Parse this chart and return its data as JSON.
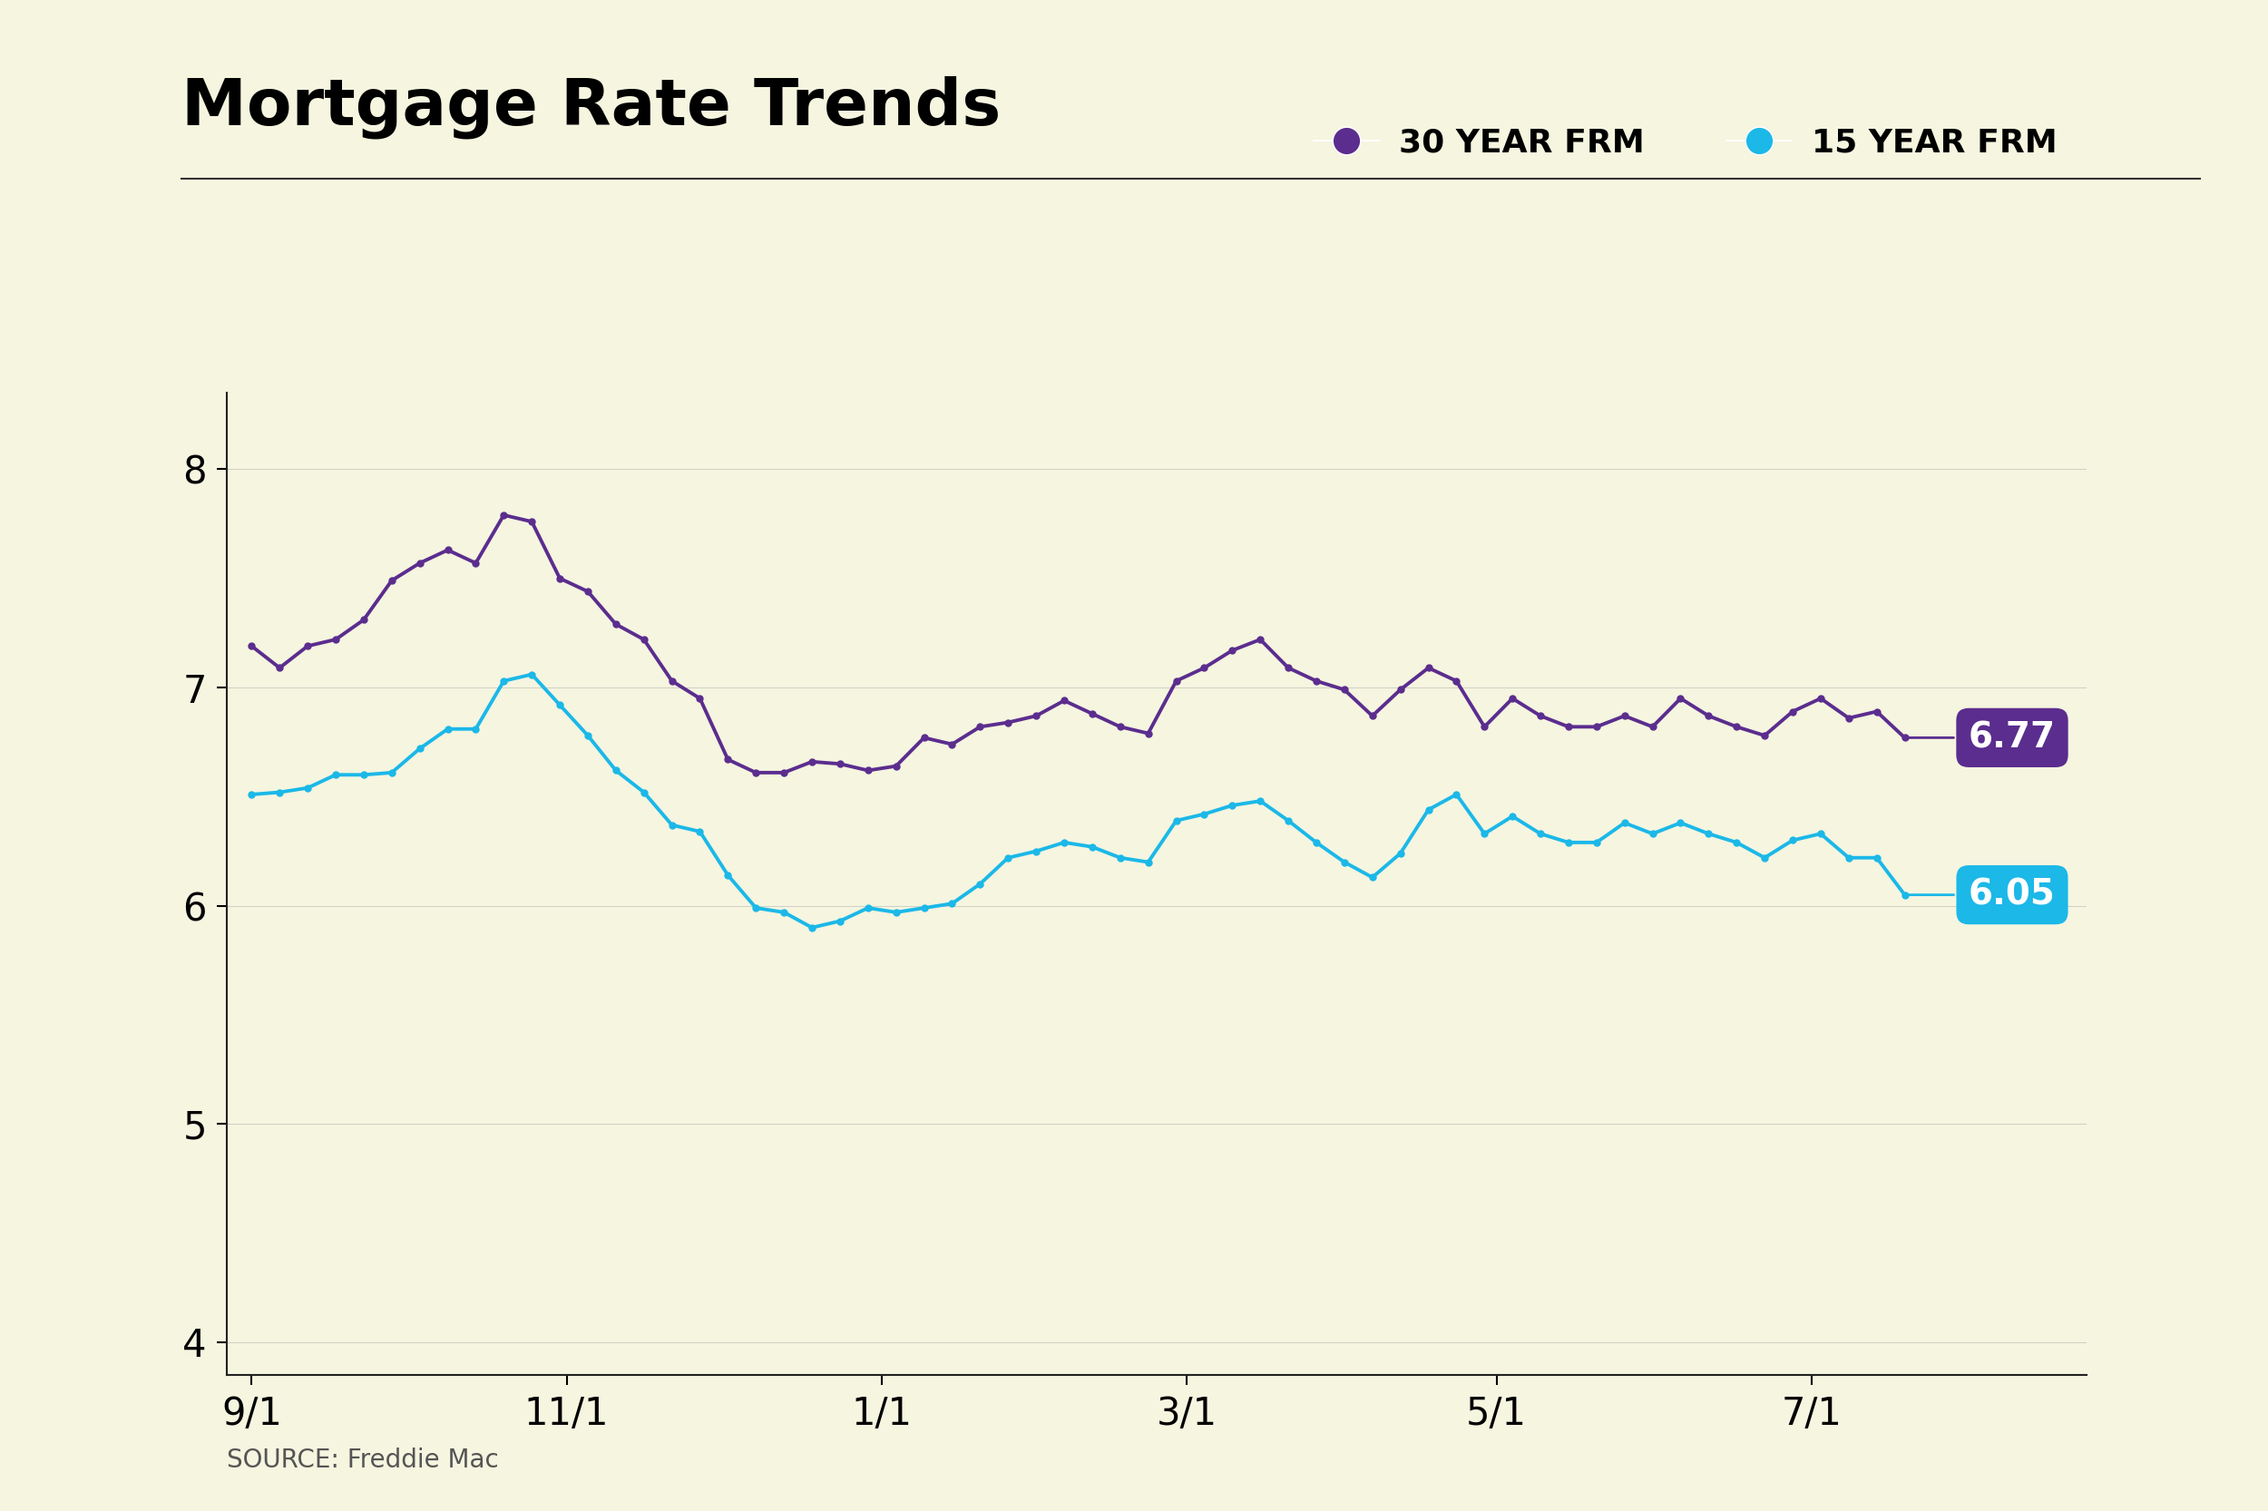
{
  "title": "Mortgage Rate Trends",
  "source": "SOURCE: Freddie Mac",
  "background_color": "#f5f5e0",
  "title_color": "#000000",
  "yticks": [
    4,
    5,
    6,
    7,
    8
  ],
  "ylim": [
    3.85,
    8.35
  ],
  "xtick_labels": [
    "9/1",
    "11/1",
    "1/1",
    "3/1",
    "5/1",
    "7/1"
  ],
  "xtick_positions": [
    0.0,
    0.1906,
    0.3813,
    0.5656,
    0.7531,
    0.9438
  ],
  "legend_30yr_label": "30 YEAR FRM",
  "legend_15yr_label": "15 YEAR FRM",
  "color_30yr": "#5B2D8E",
  "color_15yr": "#1BB8E8",
  "end_label_30yr": "6.77",
  "end_label_15yr": "6.05",
  "series_30yr": [
    7.19,
    7.09,
    7.19,
    7.22,
    7.31,
    7.49,
    7.57,
    7.63,
    7.57,
    7.79,
    7.76,
    7.5,
    7.44,
    7.29,
    7.22,
    7.03,
    6.95,
    6.67,
    6.61,
    6.61,
    6.66,
    6.65,
    6.62,
    6.64,
    6.77,
    6.74,
    6.82,
    6.84,
    6.87,
    6.94,
    6.88,
    6.82,
    6.79,
    7.03,
    7.09,
    7.17,
    7.22,
    7.09,
    7.03,
    6.99,
    6.87,
    6.99,
    7.09,
    7.03,
    6.82,
    6.95,
    6.87,
    6.82,
    6.82,
    6.87,
    6.82,
    6.95,
    6.87,
    6.82,
    6.78,
    6.89,
    6.95,
    6.86,
    6.89,
    6.77
  ],
  "series_15yr": [
    6.51,
    6.52,
    6.54,
    6.6,
    6.6,
    6.61,
    6.72,
    6.81,
    6.81,
    7.03,
    7.06,
    6.92,
    6.78,
    6.62,
    6.52,
    6.37,
    6.34,
    6.14,
    5.99,
    5.97,
    5.9,
    5.93,
    5.99,
    5.97,
    5.99,
    6.01,
    6.1,
    6.22,
    6.25,
    6.29,
    6.27,
    6.22,
    6.2,
    6.39,
    6.42,
    6.46,
    6.48,
    6.39,
    6.29,
    6.2,
    6.13,
    6.24,
    6.44,
    6.51,
    6.33,
    6.41,
    6.33,
    6.29,
    6.29,
    6.38,
    6.33,
    6.38,
    6.33,
    6.29,
    6.22,
    6.3,
    6.33,
    6.22,
    6.22,
    6.05
  ],
  "title_fontsize": 52,
  "tick_fontsize": 30,
  "legend_fontsize": 26,
  "source_fontsize": 20,
  "line_width": 2.8,
  "marker_size": 5.0
}
